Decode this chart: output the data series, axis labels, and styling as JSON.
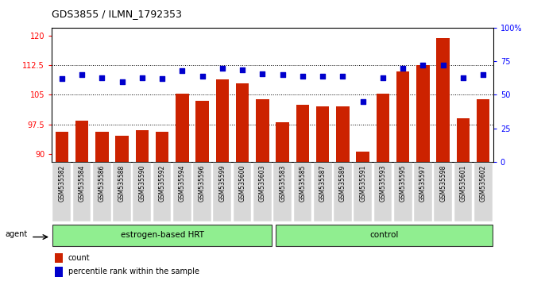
{
  "title": "GDS3855 / ILMN_1792353",
  "samples": [
    "GSM535582",
    "GSM535584",
    "GSM535586",
    "GSM535588",
    "GSM535590",
    "GSM535592",
    "GSM535594",
    "GSM535596",
    "GSM535599",
    "GSM535600",
    "GSM535603",
    "GSM535583",
    "GSM535585",
    "GSM535587",
    "GSM535589",
    "GSM535591",
    "GSM535593",
    "GSM535595",
    "GSM535597",
    "GSM535598",
    "GSM535601",
    "GSM535602"
  ],
  "counts": [
    95.5,
    98.5,
    95.5,
    94.5,
    96.0,
    95.5,
    105.2,
    103.5,
    109.0,
    108.0,
    103.8,
    98.0,
    102.5,
    102.0,
    102.0,
    90.5,
    105.2,
    111.0,
    112.5,
    119.5,
    99.0,
    103.8
  ],
  "percentile": [
    62,
    65,
    63,
    60,
    63,
    62,
    68,
    64,
    70,
    69,
    66,
    65,
    64,
    64,
    64,
    45,
    63,
    70,
    72,
    72,
    63,
    65
  ],
  "n_hrt": 11,
  "n_ctrl": 11,
  "bar_color": "#cc2200",
  "dot_color": "#0000cc",
  "ylim_left": [
    88,
    122
  ],
  "ylim_right": [
    0,
    100
  ],
  "yticks_left": [
    90,
    97.5,
    105,
    112.5,
    120
  ],
  "ytick_labels_left": [
    "90",
    "97.5",
    "105",
    "112.5",
    "120"
  ],
  "yticks_right": [
    0,
    25,
    50,
    75,
    100
  ],
  "ytick_labels_right": [
    "0",
    "25",
    "50",
    "75",
    "100%"
  ],
  "hlines": [
    97.5,
    105.0,
    112.5
  ],
  "group_label_hrt": "estrogen-based HRT",
  "group_label_ctrl": "control",
  "legend_count": "count",
  "legend_pct": "percentile rank within the sample",
  "agent_label": "agent",
  "plot_bg": "#ffffff",
  "tick_bg": "#d8d8d8"
}
